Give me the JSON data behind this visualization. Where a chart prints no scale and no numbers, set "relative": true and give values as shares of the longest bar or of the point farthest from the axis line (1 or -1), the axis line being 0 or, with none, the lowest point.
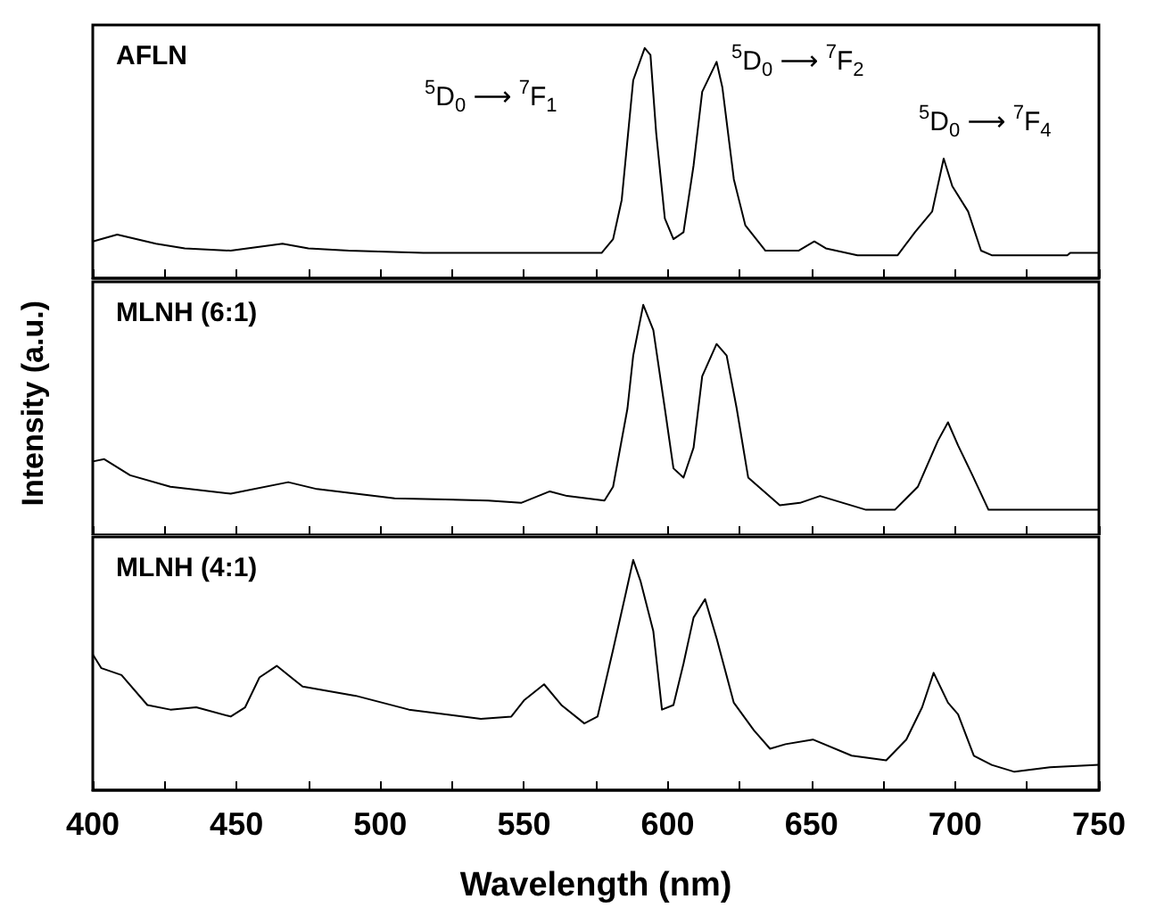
{
  "chart_data": [
    {
      "type": "line",
      "title": "AFLN",
      "relative": true,
      "tick_labels": false,
      "marker": "none",
      "line_style": "solid",
      "xlim": [
        400,
        750
      ],
      "xticks": [
        400,
        {
          "value": 425,
          "label": null
        },
        450,
        {
          "value": 475,
          "label": null
        },
        500,
        {
          "value": 525,
          "label": null
        },
        550,
        {
          "value": 575,
          "label": null
        },
        600,
        {
          "value": 625,
          "label": null
        },
        650,
        {
          "value": 675,
          "label": null
        },
        700,
        {
          "value": 725,
          "label": null
        },
        750
      ],
      "annotations": [
        "$^{5}$D$_{0}$ ⟶ $^{7}$F$_{1}$",
        "$^{5}$D$_{0}$ ⟶ $^{7}$F$_{2}$",
        "$^{5}$D$_{0}$ ⟶ $^{7}$F$_{4}$"
      ],
      "series": [
        {
          "color": "#000000",
          "x": [
            400,
            408.5,
            422,
            432,
            448,
            466,
            475,
            489,
            515,
            577,
            581,
            584,
            588,
            592,
            594,
            596,
            599,
            602,
            605.5,
            609,
            612,
            617,
            619,
            623,
            627,
            634,
            645.5,
            651,
            655,
            666,
            680,
            686,
            692,
            696,
            699,
            704.5,
            709,
            712.7,
            739,
            740,
            750
          ],
          "values": [
            0.16,
            0.19,
            0.15,
            0.13,
            0.12,
            0.15,
            0.13,
            0.12,
            0.11,
            0.11,
            0.17,
            0.34,
            0.86,
            1.0,
            0.97,
            0.63,
            0.26,
            0.17,
            0.2,
            0.49,
            0.81,
            0.94,
            0.83,
            0.43,
            0.23,
            0.12,
            0.12,
            0.16,
            0.13,
            0.1,
            0.1,
            0.2,
            0.29,
            0.52,
            0.4,
            0.29,
            0.12,
            0.1,
            0.1,
            0.11,
            0.11
          ]
        }
      ]
    },
    {
      "type": "line",
      "title": "MLNH (6:1)",
      "ylabel": "Intensity (a.u.)",
      "relative": true,
      "tick_labels": false,
      "marker": "none",
      "line_style": "solid",
      "xlim": [
        400,
        750
      ],
      "xticks": [
        400,
        {
          "value": 425,
          "label": null
        },
        450,
        {
          "value": 475,
          "label": null
        },
        500,
        {
          "value": 525,
          "label": null
        },
        550,
        {
          "value": 575,
          "label": null
        },
        600,
        {
          "value": 625,
          "label": null
        },
        650,
        {
          "value": 675,
          "label": null
        },
        700,
        {
          "value": 725,
          "label": null
        },
        750
      ],
      "series": [
        {
          "color": "#000000",
          "x": [
            400,
            404,
            413,
            427,
            448,
            468,
            478,
            505,
            537.5,
            549,
            559,
            565,
            578,
            581,
            586,
            588,
            591.5,
            595,
            599,
            602,
            605.5,
            609,
            612,
            617,
            620.5,
            624,
            628,
            639,
            646,
            653,
            669,
            679,
            687,
            694,
            697.5,
            701,
            706,
            711.6,
            722,
            745,
            750
          ],
          "values": [
            0.32,
            0.33,
            0.26,
            0.21,
            0.18,
            0.23,
            0.2,
            0.16,
            0.15,
            0.14,
            0.19,
            0.17,
            0.15,
            0.21,
            0.55,
            0.78,
            1.0,
            0.89,
            0.55,
            0.29,
            0.25,
            0.38,
            0.69,
            0.83,
            0.78,
            0.55,
            0.25,
            0.13,
            0.14,
            0.17,
            0.11,
            0.11,
            0.21,
            0.41,
            0.49,
            0.39,
            0.26,
            0.11,
            0.11,
            0.11,
            0.11
          ]
        }
      ]
    },
    {
      "type": "line",
      "title": "MLNH (4:1)",
      "xlabel": "Wavelength (nm)",
      "relative": true,
      "tick_labels": "x",
      "marker": "none",
      "line_style": "solid",
      "xlim": [
        400,
        750
      ],
      "xticks": [
        400,
        {
          "value": 425,
          "label": null
        },
        450,
        {
          "value": 475,
          "label": null
        },
        500,
        {
          "value": 525,
          "label": null
        },
        550,
        {
          "value": 575,
          "label": null
        },
        600,
        {
          "value": 625,
          "label": null
        },
        650,
        {
          "value": 675,
          "label": null
        },
        700,
        {
          "value": 725,
          "label": null
        },
        750
      ],
      "series": [
        {
          "color": "#000000",
          "x": [
            400,
            403,
            410,
            419,
            427,
            436,
            448,
            453,
            458,
            464,
            473,
            491.5,
            510,
            535,
            545.6,
            550,
            557,
            563,
            571,
            575.6,
            581,
            585.5,
            588,
            590.5,
            595,
            598,
            602,
            605.5,
            609,
            613,
            617,
            623,
            630,
            635.6,
            641,
            650.5,
            664,
            676,
            683,
            688.5,
            692.5,
            697.5,
            701,
            706.5,
            712.7,
            720.6,
            733,
            750
          ],
          "values": [
            0.59,
            0.53,
            0.5,
            0.37,
            0.35,
            0.36,
            0.32,
            0.36,
            0.49,
            0.54,
            0.45,
            0.41,
            0.35,
            0.31,
            0.32,
            0.39,
            0.46,
            0.37,
            0.29,
            0.32,
            0.61,
            0.86,
            1.0,
            0.91,
            0.69,
            0.35,
            0.37,
            0.55,
            0.75,
            0.83,
            0.66,
            0.38,
            0.26,
            0.18,
            0.2,
            0.22,
            0.15,
            0.13,
            0.22,
            0.36,
            0.51,
            0.38,
            0.33,
            0.15,
            0.11,
            0.08,
            0.1,
            0.11
          ]
        }
      ]
    }
  ]
}
